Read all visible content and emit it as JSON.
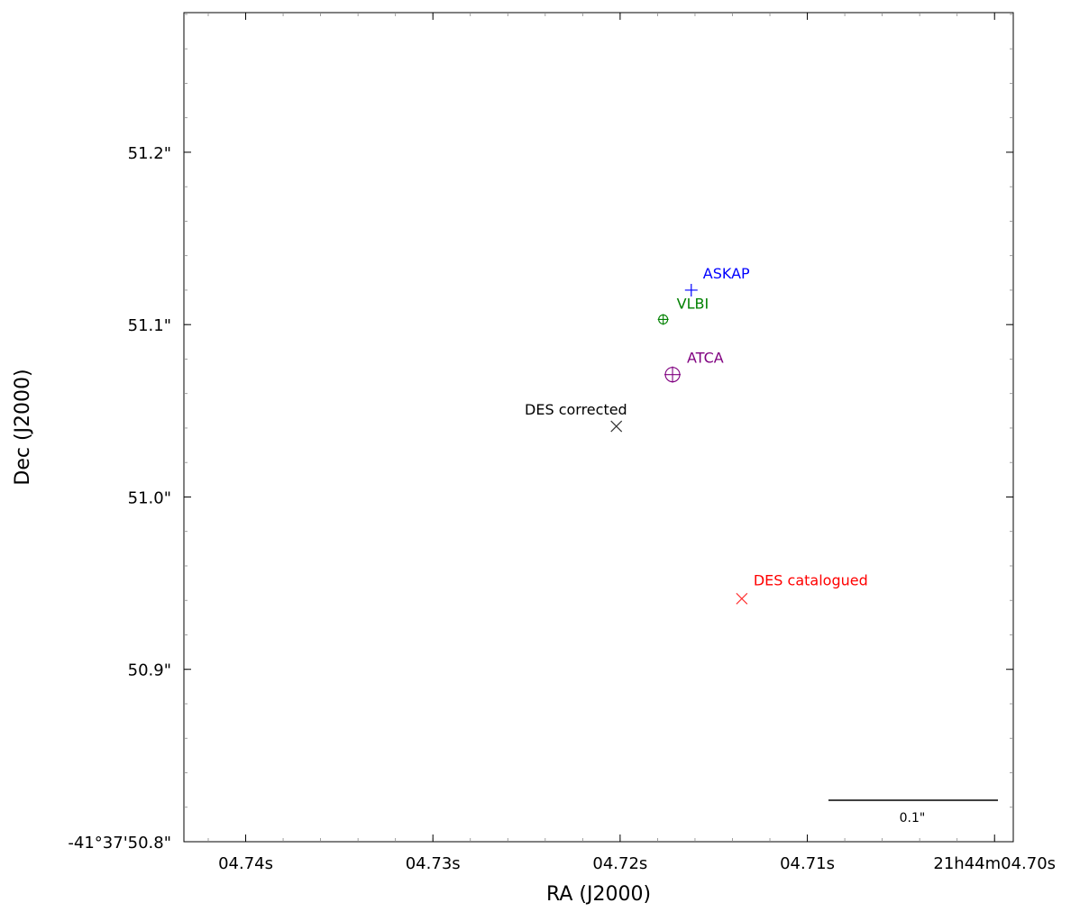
{
  "chart_data": {
    "type": "scatter",
    "title": "",
    "xlabel": "RA (J2000)",
    "ylabel": "Dec (J2000)",
    "xlim": [
      4.7433,
      4.699
    ],
    "ylim": [
      51.281,
      50.8
    ],
    "x_ticks": [
      {
        "value": 4.74,
        "label": "04.74s"
      },
      {
        "value": 4.73,
        "label": "04.73s"
      },
      {
        "value": 4.72,
        "label": "04.72s"
      },
      {
        "value": 4.71,
        "label": "04.71s"
      },
      {
        "value": 4.7,
        "label": "21h44m04.70s"
      }
    ],
    "y_ticks": [
      {
        "value": 50.8,
        "label": "-41°37'50.8\""
      },
      {
        "value": 50.9,
        "label": "50.9\""
      },
      {
        "value": 51.0,
        "label": "51.0\""
      },
      {
        "value": 51.1,
        "label": "51.1\""
      },
      {
        "value": 51.2,
        "label": "51.2\""
      }
    ],
    "grid": false,
    "points": [
      {
        "name": "DES catalogued",
        "ra": 4.7135,
        "dec": 50.941,
        "marker": "x",
        "color": "#ff0000",
        "error_radius_arcsec": 0.15
      },
      {
        "name": "DES corrected",
        "ra": 4.7202,
        "dec": 51.041,
        "marker": "x",
        "color": "#000000",
        "error_radius_arcsec": 0.15
      },
      {
        "name": "ATCA",
        "ra": 4.7172,
        "dec": 51.071,
        "marker": "circle-plus",
        "color": "#800080"
      },
      {
        "name": "VLBI",
        "ra": 4.7177,
        "dec": 51.103,
        "marker": "circle-plus",
        "color": "#008000"
      },
      {
        "name": "ASKAP",
        "ra": 4.7162,
        "dec": 51.12,
        "marker": "+",
        "color": "#0000ff",
        "error_radius_arcsec": 0.09
      }
    ],
    "scale_bar": {
      "label": "0.1\"",
      "length_arcsec": 0.1
    }
  }
}
